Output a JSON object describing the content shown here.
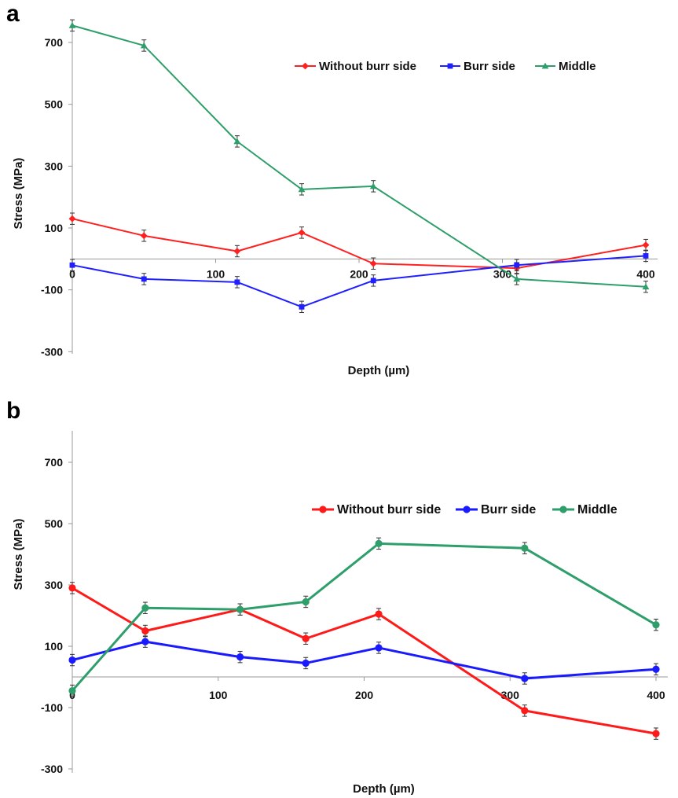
{
  "chart_data": [
    {
      "panel": "a",
      "type": "line",
      "xlabel": "Depth (µm)",
      "ylabel": "Stress (MPa)",
      "xlim": [
        0,
        400
      ],
      "ylim": [
        -300,
        800
      ],
      "x_ticks": [
        "0",
        "100",
        "200",
        "300",
        "400"
      ],
      "y_ticks": [
        "700",
        "500",
        "300",
        "100",
        "-100",
        "-300"
      ],
      "legend_position": "top-right",
      "x": [
        0,
        50,
        115,
        160,
        210,
        310,
        400
      ],
      "series": [
        {
          "name": "Without burr side",
          "color": "#ff2020",
          "marker": "diamond",
          "values": [
            130,
            75,
            25,
            85,
            -15,
            -30,
            45
          ]
        },
        {
          "name": "Burr side",
          "color": "#1f1fff",
          "marker": "square",
          "values": [
            -20,
            -65,
            -75,
            -155,
            -70,
            -20,
            10
          ]
        },
        {
          "name": "Middle",
          "color": "#2e9e6b",
          "marker": "triangle",
          "values": [
            755,
            690,
            380,
            225,
            235,
            -65,
            -90
          ]
        }
      ]
    },
    {
      "panel": "b",
      "type": "line",
      "xlabel": "Depth (µm)",
      "ylabel": "Stress (MPa)",
      "xlim": [
        0,
        400
      ],
      "ylim": [
        -300,
        800
      ],
      "x_ticks": [
        "0",
        "100",
        "200",
        "300",
        "400"
      ],
      "y_ticks": [
        "700",
        "500",
        "300",
        "100",
        "-100",
        "-300"
      ],
      "legend_position": "top-right",
      "x": [
        0,
        50,
        115,
        160,
        210,
        310,
        400
      ],
      "series": [
        {
          "name": "Without burr side",
          "color": "#ff1a1a",
          "marker": "circle",
          "values": [
            290,
            150,
            220,
            125,
            205,
            -110,
            -185
          ]
        },
        {
          "name": "Burr side",
          "color": "#1a1aff",
          "marker": "circle",
          "values": [
            55,
            115,
            65,
            45,
            95,
            -5,
            25
          ]
        },
        {
          "name": "Middle",
          "color": "#2e9e6b",
          "marker": "circle",
          "values": [
            -45,
            225,
            220,
            245,
            435,
            420,
            170
          ]
        }
      ]
    }
  ]
}
